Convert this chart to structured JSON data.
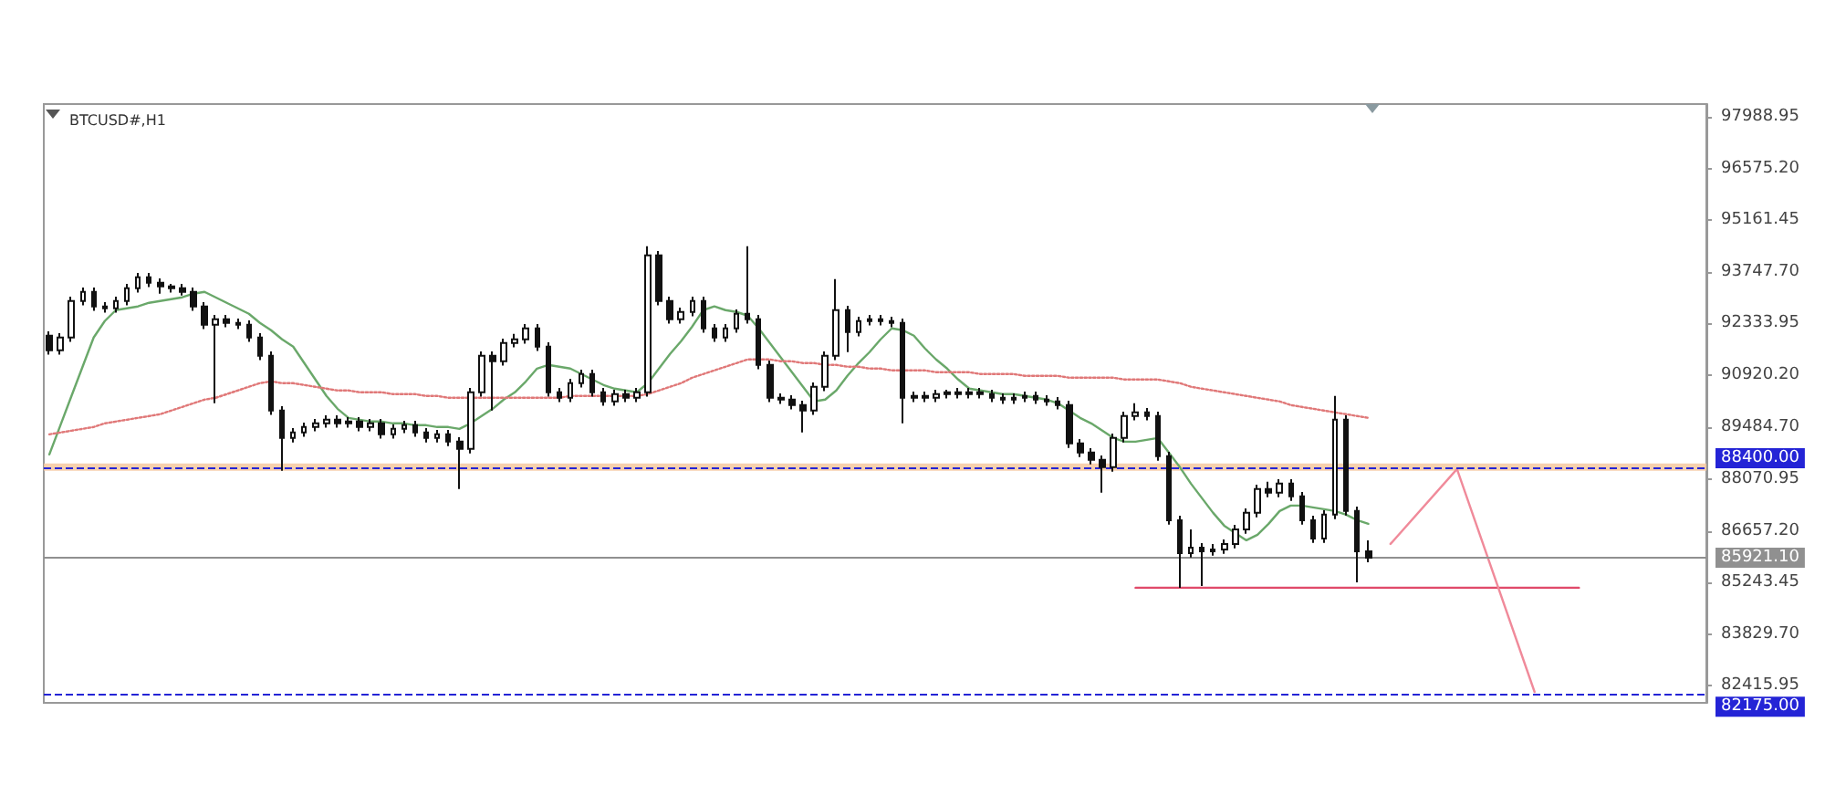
{
  "chart_data": {
    "type": "candlestick",
    "title": "BTCUSD#,H1",
    "tick_labels": "y",
    "categories": [
      null,
      null,
      null,
      null,
      null,
      null,
      null,
      null,
      null,
      null,
      null,
      null,
      null,
      null,
      null,
      null,
      null,
      null,
      null,
      null,
      null,
      null,
      null,
      null,
      null,
      null,
      null,
      null,
      null,
      null,
      null,
      null,
      null,
      null,
      null,
      null,
      null,
      null,
      null,
      null,
      null,
      null,
      null,
      null,
      null,
      null,
      null,
      null,
      null,
      null,
      null,
      null,
      null,
      null,
      null,
      null,
      null,
      null,
      null,
      null,
      null,
      null,
      null,
      null,
      null,
      null,
      null,
      null,
      null,
      null,
      null,
      null,
      null,
      null,
      null,
      null,
      null,
      null,
      null,
      null,
      null,
      null,
      null,
      null,
      null,
      null,
      null,
      null,
      null,
      null,
      null,
      null,
      null,
      null,
      null,
      null,
      null,
      null,
      null,
      null,
      null,
      null,
      null,
      null,
      null,
      null,
      null,
      null,
      null,
      null,
      null,
      null,
      null,
      null,
      null,
      null,
      null,
      null,
      null,
      null,
      null,
      null,
      null,
      null,
      null,
      null,
      null,
      null,
      null,
      null,
      null,
      null,
      null,
      null,
      null,
      null,
      null,
      null,
      null,
      null,
      null,
      null,
      null,
      null,
      null,
      null,
      null,
      null,
      null,
      null
    ],
    "ylim": [
      81950,
      98340
    ],
    "yticks": [
      {
        "value": 97988.95,
        "label": "97988.95"
      },
      {
        "value": 96575.2,
        "label": "96575.20"
      },
      {
        "value": 95161.45,
        "label": "95161.45"
      },
      {
        "value": 93747.7,
        "label": "93747.70"
      },
      {
        "value": 92333.95,
        "label": "92333.95"
      },
      {
        "value": 90920.2,
        "label": "90920.20"
      },
      {
        "value": 89484.7,
        "label": "89484.70"
      },
      {
        "value": 88070.95,
        "label": "88070.95"
      },
      {
        "value": 86657.2,
        "label": "86657.20"
      },
      {
        "value": 85243.45,
        "label": "85243.45"
      },
      {
        "value": 83829.7,
        "label": "83829.70"
      },
      {
        "value": 82415.95,
        "label": "82415.95"
      }
    ],
    "ref_lines": [
      {
        "axis": "y",
        "value": 88400,
        "label": "88400.00",
        "color": "#2424d6",
        "line_style": "dashed"
      },
      {
        "axis": "y",
        "value": 82175,
        "label": "82175.00",
        "color": "#2424d6",
        "line_style": "dashed"
      },
      {
        "axis": "y",
        "value": 85921.1,
        "label": "85921.10",
        "color": "#909090",
        "line_style": "solid"
      }
    ],
    "bands": [
      {
        "axis": "y",
        "from": 88300,
        "to": 88500,
        "color": "#f5c8a0"
      }
    ],
    "series": [
      {
        "type": "line",
        "color": "#6aa86a",
        "line_style": "solid",
        "values": [
          88750,
          89550,
          90350,
          91150,
          91950,
          92400,
          92700,
          92750,
          92800,
          92900,
          92950,
          93000,
          93050,
          93150,
          93200,
          93050,
          92900,
          92750,
          92600,
          92350,
          92150,
          91900,
          91700,
          91250,
          90800,
          90350,
          90000,
          89750,
          89700,
          89650,
          89650,
          89600,
          89600,
          89550,
          89550,
          89500,
          89500,
          89450,
          89600,
          89800,
          90000,
          90250,
          90450,
          90750,
          91100,
          91200,
          91150,
          91100,
          90950,
          90800,
          90650,
          90550,
          90500,
          90450,
          90700,
          91100,
          91500,
          91850,
          92250,
          92700,
          92800,
          92700,
          92650,
          92550,
          92200,
          91800,
          91400,
          91000,
          90600,
          90200,
          90250,
          90500,
          90900,
          91250,
          91550,
          91900,
          92200,
          92150,
          92000,
          91650,
          91350,
          91100,
          90800,
          90550,
          90500,
          90450,
          90400,
          90400,
          90350,
          90300,
          90250,
          90150,
          89950,
          89750,
          89600,
          89400,
          89200,
          89100,
          89100,
          89150,
          89200,
          88800,
          88400,
          87950,
          87550,
          87150,
          86800,
          86600,
          86400,
          86550,
          86850,
          87200,
          87350,
          87350,
          87300,
          87250,
          87200,
          87100,
          86950,
          86850,
          null,
          null,
          null,
          null,
          null,
          null,
          null,
          null,
          null,
          null,
          null,
          null,
          null,
          null,
          null,
          null,
          null,
          null,
          null,
          null,
          null,
          null,
          null,
          null,
          null,
          null,
          null,
          null,
          null,
          null
        ]
      },
      {
        "type": "line",
        "color": "#e07878",
        "line_style": "dotted",
        "values": [
          89300,
          89350,
          89400,
          89450,
          89500,
          89600,
          89650,
          89700,
          89750,
          89800,
          89850,
          89950,
          90050,
          90150,
          90250,
          90300,
          90400,
          90500,
          90600,
          90700,
          90750,
          90700,
          90700,
          90650,
          90600,
          90550,
          90500,
          90500,
          90450,
          90450,
          90450,
          90400,
          90400,
          90400,
          90350,
          90350,
          90300,
          90300,
          90300,
          90300,
          90300,
          90300,
          90300,
          90300,
          90300,
          90300,
          90300,
          90350,
          90350,
          90350,
          90350,
          90350,
          90350,
          90350,
          90400,
          90500,
          90600,
          90700,
          90850,
          90950,
          91050,
          91150,
          91250,
          91350,
          91350,
          91350,
          91300,
          91300,
          91250,
          91250,
          91200,
          91200,
          91150,
          91150,
          91100,
          91100,
          91050,
          91050,
          91050,
          91050,
          91000,
          91000,
          91000,
          91000,
          90950,
          90950,
          90950,
          90950,
          90900,
          90900,
          90900,
          90900,
          90850,
          90850,
          90850,
          90850,
          90850,
          90800,
          90800,
          90800,
          90800,
          90750,
          90700,
          90600,
          90550,
          90500,
          90450,
          90400,
          90350,
          90300,
          90250,
          90200,
          90100,
          90050,
          90000,
          89950,
          89900,
          89850,
          89800,
          89750,
          null,
          null,
          null,
          null,
          null,
          null,
          null,
          null,
          null,
          null,
          null,
          null,
          null,
          null,
          null,
          null,
          null,
          null,
          null,
          null,
          null,
          null,
          null,
          null,
          null,
          null,
          null,
          null,
          null,
          null
        ]
      },
      {
        "type": "line",
        "color": "#e04a6a",
        "line_style": "solid",
        "values": [
          null,
          null,
          null,
          null,
          null,
          null,
          null,
          null,
          null,
          null,
          null,
          null,
          null,
          null,
          null,
          null,
          null,
          null,
          null,
          null,
          null,
          null,
          null,
          null,
          null,
          null,
          null,
          null,
          null,
          null,
          null,
          null,
          null,
          null,
          null,
          null,
          null,
          null,
          null,
          null,
          null,
          null,
          null,
          null,
          null,
          null,
          null,
          null,
          null,
          null,
          null,
          null,
          null,
          null,
          null,
          null,
          null,
          null,
          null,
          null,
          null,
          null,
          null,
          null,
          null,
          null,
          null,
          null,
          null,
          null,
          null,
          null,
          null,
          null,
          null,
          null,
          null,
          null,
          null,
          null,
          null,
          null,
          null,
          null,
          null,
          null,
          null,
          null,
          null,
          null,
          null,
          null,
          null,
          null,
          null,
          null,
          null,
          null,
          85100,
          85100,
          85100,
          85100,
          85100,
          85100,
          85100,
          85100,
          85100,
          85100,
          85100,
          85100,
          85100,
          85100,
          85100,
          85100,
          85100,
          85100,
          85100,
          85100,
          85100,
          85100,
          85100,
          85100,
          85100,
          85100,
          85100,
          85100,
          85100,
          85100,
          85100,
          85100,
          85100,
          85100,
          85100,
          85100,
          85100,
          85100,
          85100,
          85100,
          85100,
          null,
          null,
          null,
          null,
          null,
          null,
          null,
          null,
          null,
          null,
          null
        ]
      },
      {
        "type": "line",
        "color": "#f08a9a",
        "line_style": "solid",
        "values": [
          null,
          null,
          null,
          null,
          null,
          null,
          null,
          null,
          null,
          null,
          null,
          null,
          null,
          null,
          null,
          null,
          null,
          null,
          null,
          null,
          null,
          null,
          null,
          null,
          null,
          null,
          null,
          null,
          null,
          null,
          null,
          null,
          null,
          null,
          null,
          null,
          null,
          null,
          null,
          null,
          null,
          null,
          null,
          null,
          null,
          null,
          null,
          null,
          null,
          null,
          null,
          null,
          null,
          null,
          null,
          null,
          null,
          null,
          null,
          null,
          null,
          null,
          null,
          null,
          null,
          null,
          null,
          null,
          null,
          null,
          null,
          null,
          null,
          null,
          null,
          null,
          null,
          null,
          null,
          null,
          null,
          null,
          null,
          null,
          null,
          null,
          null,
          null,
          null,
          null,
          null,
          null,
          null,
          null,
          null,
          null,
          null,
          null,
          null,
          null,
          null,
          null,
          null,
          null,
          null,
          null,
          null,
          null,
          null,
          null,
          null,
          null,
          null,
          null,
          null,
          null,
          null,
          null,
          null,
          null,
          null,
          86300,
          null,
          null,
          null,
          null,
          null,
          88350,
          null,
          null,
          null,
          null,
          null,
          null,
          82250,
          null,
          null,
          null,
          null,
          null,
          null,
          null,
          null,
          null,
          null,
          null,
          null,
          null,
          null,
          null
        ]
      },
      {
        "type": "candlestick",
        "color": "#111111",
        "ohlc": [
          [
            92000,
            92120,
            91480,
            91600
          ],
          [
            91600,
            92070,
            91480,
            91950
          ],
          [
            91950,
            93070,
            91830,
            92950
          ],
          [
            92950,
            93320,
            92830,
            93200
          ],
          [
            93200,
            93320,
            92680,
            92800
          ],
          [
            92800,
            92920,
            92630,
            92750
          ],
          [
            92750,
            93070,
            92630,
            92950
          ],
          [
            92950,
            93420,
            92830,
            93300
          ],
          [
            93300,
            93720,
            93180,
            93600
          ],
          [
            93600,
            93720,
            93330,
            93450
          ],
          [
            93450,
            93570,
            93150,
            93350
          ],
          [
            93350,
            93420,
            93180,
            93300
          ],
          [
            93300,
            93420,
            93100,
            93200
          ],
          [
            93200,
            93320,
            92680,
            92800
          ],
          [
            92800,
            92920,
            92180,
            92300
          ],
          [
            92300,
            92570,
            90150,
            92450
          ],
          [
            92450,
            92570,
            92230,
            92350
          ],
          [
            92350,
            92470,
            92180,
            92300
          ],
          [
            92300,
            92420,
            91830,
            91950
          ],
          [
            91950,
            92070,
            91330,
            91450
          ],
          [
            91450,
            91570,
            89830,
            89950
          ],
          [
            89950,
            90070,
            88300,
            89200
          ],
          [
            89200,
            89470,
            89080,
            89350
          ],
          [
            89350,
            89620,
            89230,
            89500
          ],
          [
            89500,
            89720,
            89380,
            89600
          ],
          [
            89600,
            89820,
            89480,
            89700
          ],
          [
            89700,
            89820,
            89480,
            89600
          ],
          [
            89600,
            89770,
            89480,
            89650
          ],
          [
            89650,
            89770,
            89380,
            89500
          ],
          [
            89500,
            89720,
            89380,
            89600
          ],
          [
            89600,
            89720,
            89180,
            89300
          ],
          [
            89300,
            89570,
            89180,
            89450
          ],
          [
            89450,
            89670,
            89330,
            89550
          ],
          [
            89550,
            89670,
            89230,
            89350
          ],
          [
            89350,
            89470,
            89080,
            89200
          ],
          [
            89200,
            89420,
            89080,
            89300
          ],
          [
            89300,
            89420,
            88980,
            89100
          ],
          [
            89100,
            89220,
            87800,
            88900
          ],
          [
            88900,
            90570,
            88780,
            90450
          ],
          [
            90450,
            91570,
            90330,
            91450
          ],
          [
            91450,
            91570,
            89950,
            91300
          ],
          [
            91300,
            91920,
            91180,
            91800
          ],
          [
            91800,
            92050,
            91680,
            91900
          ],
          [
            91900,
            92320,
            91780,
            92200
          ],
          [
            92200,
            92320,
            91580,
            91700
          ],
          [
            91700,
            91820,
            90330,
            90450
          ],
          [
            90450,
            90570,
            90180,
            90300
          ],
          [
            90300,
            90820,
            90180,
            90700
          ],
          [
            90700,
            91070,
            90580,
            90950
          ],
          [
            90950,
            91070,
            90330,
            90450
          ],
          [
            90450,
            90570,
            90080,
            90200
          ],
          [
            90200,
            90520,
            90080,
            90400
          ],
          [
            90400,
            90520,
            90180,
            90300
          ],
          [
            90300,
            90570,
            90180,
            90450
          ],
          [
            90450,
            94450,
            90330,
            94200
          ],
          [
            94200,
            94320,
            92830,
            92950
          ],
          [
            92950,
            93070,
            92330,
            92450
          ],
          [
            92450,
            92770,
            92330,
            92650
          ],
          [
            92650,
            93070,
            92530,
            92950
          ],
          [
            92950,
            93070,
            92080,
            92200
          ],
          [
            92200,
            92320,
            91830,
            91950
          ],
          [
            91950,
            92320,
            91830,
            92200
          ],
          [
            92200,
            92720,
            92080,
            92600
          ],
          [
            92600,
            94450,
            92330,
            92450
          ],
          [
            92450,
            92570,
            91080,
            91200
          ],
          [
            91200,
            91320,
            90180,
            90300
          ],
          [
            90300,
            90420,
            90130,
            90250
          ],
          [
            90250,
            90370,
            89980,
            90100
          ],
          [
            90100,
            90220,
            89350,
            89950
          ],
          [
            89950,
            90720,
            89830,
            90600
          ],
          [
            90600,
            91570,
            90480,
            91450
          ],
          [
            91450,
            93550,
            91330,
            92700
          ],
          [
            92700,
            92820,
            91550,
            92100
          ],
          [
            92100,
            92520,
            91980,
            92400
          ],
          [
            92400,
            92570,
            92280,
            92450
          ],
          [
            92450,
            92570,
            92280,
            92400
          ],
          [
            92400,
            92520,
            92230,
            92350
          ],
          [
            92350,
            92470,
            89600,
            90300
          ],
          [
            90300,
            90470,
            90180,
            90350
          ],
          [
            90350,
            90470,
            90180,
            90300
          ],
          [
            90300,
            90520,
            90180,
            90400
          ],
          [
            90400,
            90520,
            90280,
            90450
          ],
          [
            90450,
            90570,
            90280,
            90400
          ],
          [
            90400,
            90570,
            90280,
            90450
          ],
          [
            90450,
            90570,
            90280,
            90400
          ],
          [
            90400,
            90520,
            90180,
            90300
          ],
          [
            90300,
            90420,
            90130,
            90250
          ],
          [
            90250,
            90420,
            90130,
            90300
          ],
          [
            90300,
            90470,
            90180,
            90350
          ],
          [
            90350,
            90470,
            90130,
            90250
          ],
          [
            90250,
            90370,
            90080,
            90200
          ],
          [
            90200,
            90320,
            89980,
            90100
          ],
          [
            90100,
            90220,
            88930,
            89050
          ],
          [
            89050,
            89170,
            88680,
            88800
          ],
          [
            88800,
            88920,
            88480,
            88600
          ],
          [
            88600,
            88720,
            87700,
            88400
          ],
          [
            88400,
            89320,
            88280,
            89200
          ],
          [
            89200,
            89920,
            89080,
            89800
          ],
          [
            89800,
            90150,
            89680,
            89900
          ],
          [
            89900,
            90020,
            89680,
            89800
          ],
          [
            89800,
            89920,
            88580,
            88700
          ],
          [
            88700,
            88820,
            86830,
            86950
          ],
          [
            86950,
            87070,
            85100,
            86050
          ],
          [
            86050,
            86700,
            85930,
            86200
          ],
          [
            86200,
            86320,
            85150,
            86100
          ],
          [
            86100,
            86300,
            85980,
            86150
          ],
          [
            86150,
            86420,
            86030,
            86300
          ],
          [
            86300,
            86820,
            86180,
            86700
          ],
          [
            86700,
            87270,
            86580,
            87150
          ],
          [
            87150,
            87920,
            87030,
            87800
          ],
          [
            87800,
            88000,
            87580,
            87700
          ],
          [
            87700,
            88070,
            87580,
            87950
          ],
          [
            87950,
            88070,
            87480,
            87600
          ],
          [
            87600,
            87720,
            86830,
            86950
          ],
          [
            86950,
            87070,
            86330,
            86450
          ],
          [
            86450,
            87220,
            86330,
            87100
          ],
          [
            87100,
            90350,
            86980,
            89700
          ],
          [
            89700,
            89820,
            87080,
            87200
          ],
          [
            87200,
            87320,
            85250,
            86100
          ],
          [
            86100,
            86400,
            85800,
            85920
          ],
          null,
          null,
          null,
          null,
          null,
          null,
          null,
          null,
          null,
          null,
          null,
          null,
          null,
          null,
          null,
          null,
          null,
          null,
          null,
          null,
          null,
          null,
          null,
          null,
          null,
          null,
          null,
          null,
          null,
          null
        ]
      }
    ]
  }
}
